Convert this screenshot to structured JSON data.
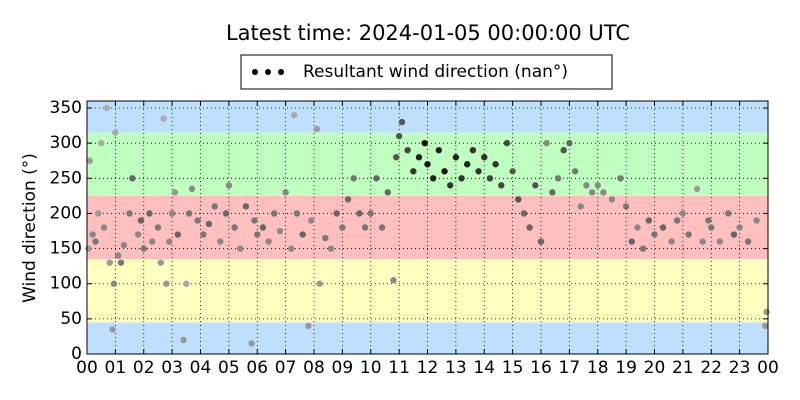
{
  "chart_data": {
    "type": "scatter",
    "title": "Latest time: 2024-01-05 00:00:00 UTC",
    "y_label": "Wind direction (°)",
    "legend_label": "Resultant wind direction (nan°)",
    "legend_color": "#000000",
    "xlim": [
      0,
      24
    ],
    "xticks": [
      {
        "value": 0,
        "label": "00"
      },
      {
        "value": 1,
        "label": "01"
      },
      {
        "value": 2,
        "label": "02"
      },
      {
        "value": 3,
        "label": "03"
      },
      {
        "value": 4,
        "label": "04"
      },
      {
        "value": 5,
        "label": "05"
      },
      {
        "value": 6,
        "label": "06"
      },
      {
        "value": 7,
        "label": "07"
      },
      {
        "value": 8,
        "label": "08"
      },
      {
        "value": 9,
        "label": "09"
      },
      {
        "value": 10,
        "label": "10"
      },
      {
        "value": 11,
        "label": "11"
      },
      {
        "value": 12,
        "label": "12"
      },
      {
        "value": 13,
        "label": "13"
      },
      {
        "value": 14,
        "label": "14"
      },
      {
        "value": 15,
        "label": "15"
      },
      {
        "value": 16,
        "label": "16"
      },
      {
        "value": 17,
        "label": "17"
      },
      {
        "value": 18,
        "label": "18"
      },
      {
        "value": 19,
        "label": "19"
      },
      {
        "value": 20,
        "label": "20"
      },
      {
        "value": 21,
        "label": "21"
      },
      {
        "value": 22,
        "label": "22"
      },
      {
        "value": 23,
        "label": "23"
      },
      {
        "value": 24,
        "label": "00"
      }
    ],
    "ylim": [
      0,
      360
    ],
    "yticks": [
      0,
      50,
      100,
      150,
      200,
      250,
      300,
      350
    ],
    "grid": true,
    "bands": [
      {
        "from": 0,
        "to": 45,
        "color": "#bfdfff"
      },
      {
        "from": 45,
        "to": 135,
        "color": "#ffffbf"
      },
      {
        "from": 135,
        "to": 225,
        "color": "#ffbfbf"
      },
      {
        "from": 225,
        "to": 315,
        "color": "#bfffbf"
      },
      {
        "from": 315,
        "to": 360,
        "color": "#bfdfff"
      }
    ],
    "x": [
      0.05,
      0.1,
      0.2,
      0.3,
      0.4,
      0.5,
      0.6,
      0.7,
      0.8,
      0.9,
      0.95,
      1.0,
      1.1,
      1.2,
      1.3,
      1.5,
      1.6,
      1.8,
      1.9,
      2.0,
      2.2,
      2.3,
      2.5,
      2.6,
      2.7,
      2.8,
      2.9,
      3.0,
      3.1,
      3.2,
      3.4,
      3.5,
      3.6,
      3.7,
      3.9,
      4.1,
      4.3,
      4.5,
      4.7,
      4.9,
      5.0,
      5.2,
      5.4,
      5.6,
      5.8,
      5.9,
      6.0,
      6.2,
      6.4,
      6.6,
      6.8,
      7.0,
      7.2,
      7.3,
      7.4,
      7.6,
      7.8,
      7.9,
      8.1,
      8.2,
      8.4,
      8.6,
      8.8,
      9.0,
      9.2,
      9.4,
      9.6,
      9.8,
      10.0,
      10.2,
      10.4,
      10.6,
      10.8,
      10.9,
      11.0,
      11.1,
      11.3,
      11.5,
      11.7,
      11.9,
      12.0,
      12.2,
      12.4,
      12.6,
      12.8,
      13.0,
      13.2,
      13.4,
      13.6,
      13.8,
      14.0,
      14.2,
      14.4,
      14.6,
      14.8,
      15.0,
      15.2,
      15.4,
      15.6,
      15.8,
      16.0,
      16.2,
      16.4,
      16.6,
      16.8,
      17.0,
      17.2,
      17.4,
      17.6,
      17.8,
      18.0,
      18.2,
      18.5,
      18.8,
      19.0,
      19.2,
      19.4,
      19.6,
      19.8,
      20.0,
      20.3,
      20.6,
      20.8,
      21.0,
      21.2,
      21.5,
      21.7,
      21.9,
      22.0,
      22.3,
      22.6,
      22.8,
      23.0,
      23.3,
      23.6,
      23.9,
      23.95
    ],
    "values": [
      150,
      275,
      170,
      160,
      200,
      300,
      180,
      350,
      130,
      35,
      100,
      315,
      140,
      130,
      155,
      200,
      250,
      170,
      190,
      150,
      200,
      160,
      180,
      130,
      335,
      100,
      160,
      200,
      230,
      170,
      20,
      100,
      200,
      235,
      190,
      170,
      185,
      210,
      160,
      200,
      240,
      180,
      150,
      210,
      15,
      190,
      170,
      180,
      160,
      200,
      175,
      230,
      150,
      340,
      200,
      170,
      40,
      190,
      320,
      100,
      165,
      150,
      200,
      180,
      220,
      250,
      200,
      180,
      200,
      250,
      180,
      230,
      105,
      280,
      310,
      330,
      290,
      260,
      280,
      300,
      270,
      250,
      290,
      260,
      240,
      280,
      250,
      270,
      290,
      260,
      280,
      250,
      270,
      240,
      300,
      260,
      220,
      200,
      180,
      240,
      160,
      300,
      230,
      250,
      290,
      300,
      260,
      210,
      240,
      230,
      240,
      230,
      220,
      250,
      210,
      160,
      180,
      150,
      190,
      170,
      180,
      160,
      190,
      200,
      170,
      235,
      160,
      190,
      180,
      160,
      200,
      170,
      180,
      160,
      190,
      40,
      60
    ],
    "colors": [
      "#999999",
      "#999999",
      "#888888",
      "#777777",
      "#999999",
      "#aaaaaa",
      "#888888",
      "#aaaaaa",
      "#999999",
      "#999999",
      "#888888",
      "#aaaaaa",
      "#888888",
      "#777777",
      "#888888",
      "#777777",
      "#666666",
      "#888888",
      "#666666",
      "#777777",
      "#666666",
      "#888888",
      "#777777",
      "#999999",
      "#aaaaaa",
      "#999999",
      "#888888",
      "#888888",
      "#999999",
      "#666666",
      "#999999",
      "#aaaaaa",
      "#777777",
      "#888888",
      "#777777",
      "#777777",
      "#666666",
      "#777777",
      "#888888",
      "#666666",
      "#888888",
      "#777777",
      "#888888",
      "#666666",
      "#999999",
      "#777777",
      "#777777",
      "#666666",
      "#888888",
      "#777777",
      "#888888",
      "#888888",
      "#888888",
      "#aaaaaa",
      "#777777",
      "#666666",
      "#999999",
      "#888888",
      "#999999",
      "#999999",
      "#777777",
      "#888888",
      "#666666",
      "#777777",
      "#666666",
      "#777777",
      "#666666",
      "#777777",
      "#777777",
      "#666666",
      "#777777",
      "#666666",
      "#888888",
      "#555555",
      "#555555",
      "#555555",
      "#444444",
      "#333333",
      "#222222",
      "#111111",
      "#111111",
      "#222222",
      "#222222",
      "#111111",
      "#333333",
      "#222222",
      "#333333",
      "#222222",
      "#333333",
      "#333333",
      "#333333",
      "#444444",
      "#333333",
      "#444444",
      "#444444",
      "#555555",
      "#555555",
      "#666666",
      "#666666",
      "#555555",
      "#666666",
      "#888888",
      "#666666",
      "#777777",
      "#555555",
      "#666666",
      "#777777",
      "#888888",
      "#888888",
      "#888888",
      "#888888",
      "#888888",
      "#888888",
      "#777777",
      "#777777",
      "#666666",
      "#888888",
      "#777777",
      "#666666",
      "#777777",
      "#666666",
      "#888888",
      "#777777",
      "#888888",
      "#777777",
      "#999999",
      "#888888",
      "#777777",
      "#777777",
      "#888888",
      "#777777",
      "#666666",
      "#888888",
      "#777777",
      "#888888",
      "#999999",
      "#999999"
    ]
  }
}
